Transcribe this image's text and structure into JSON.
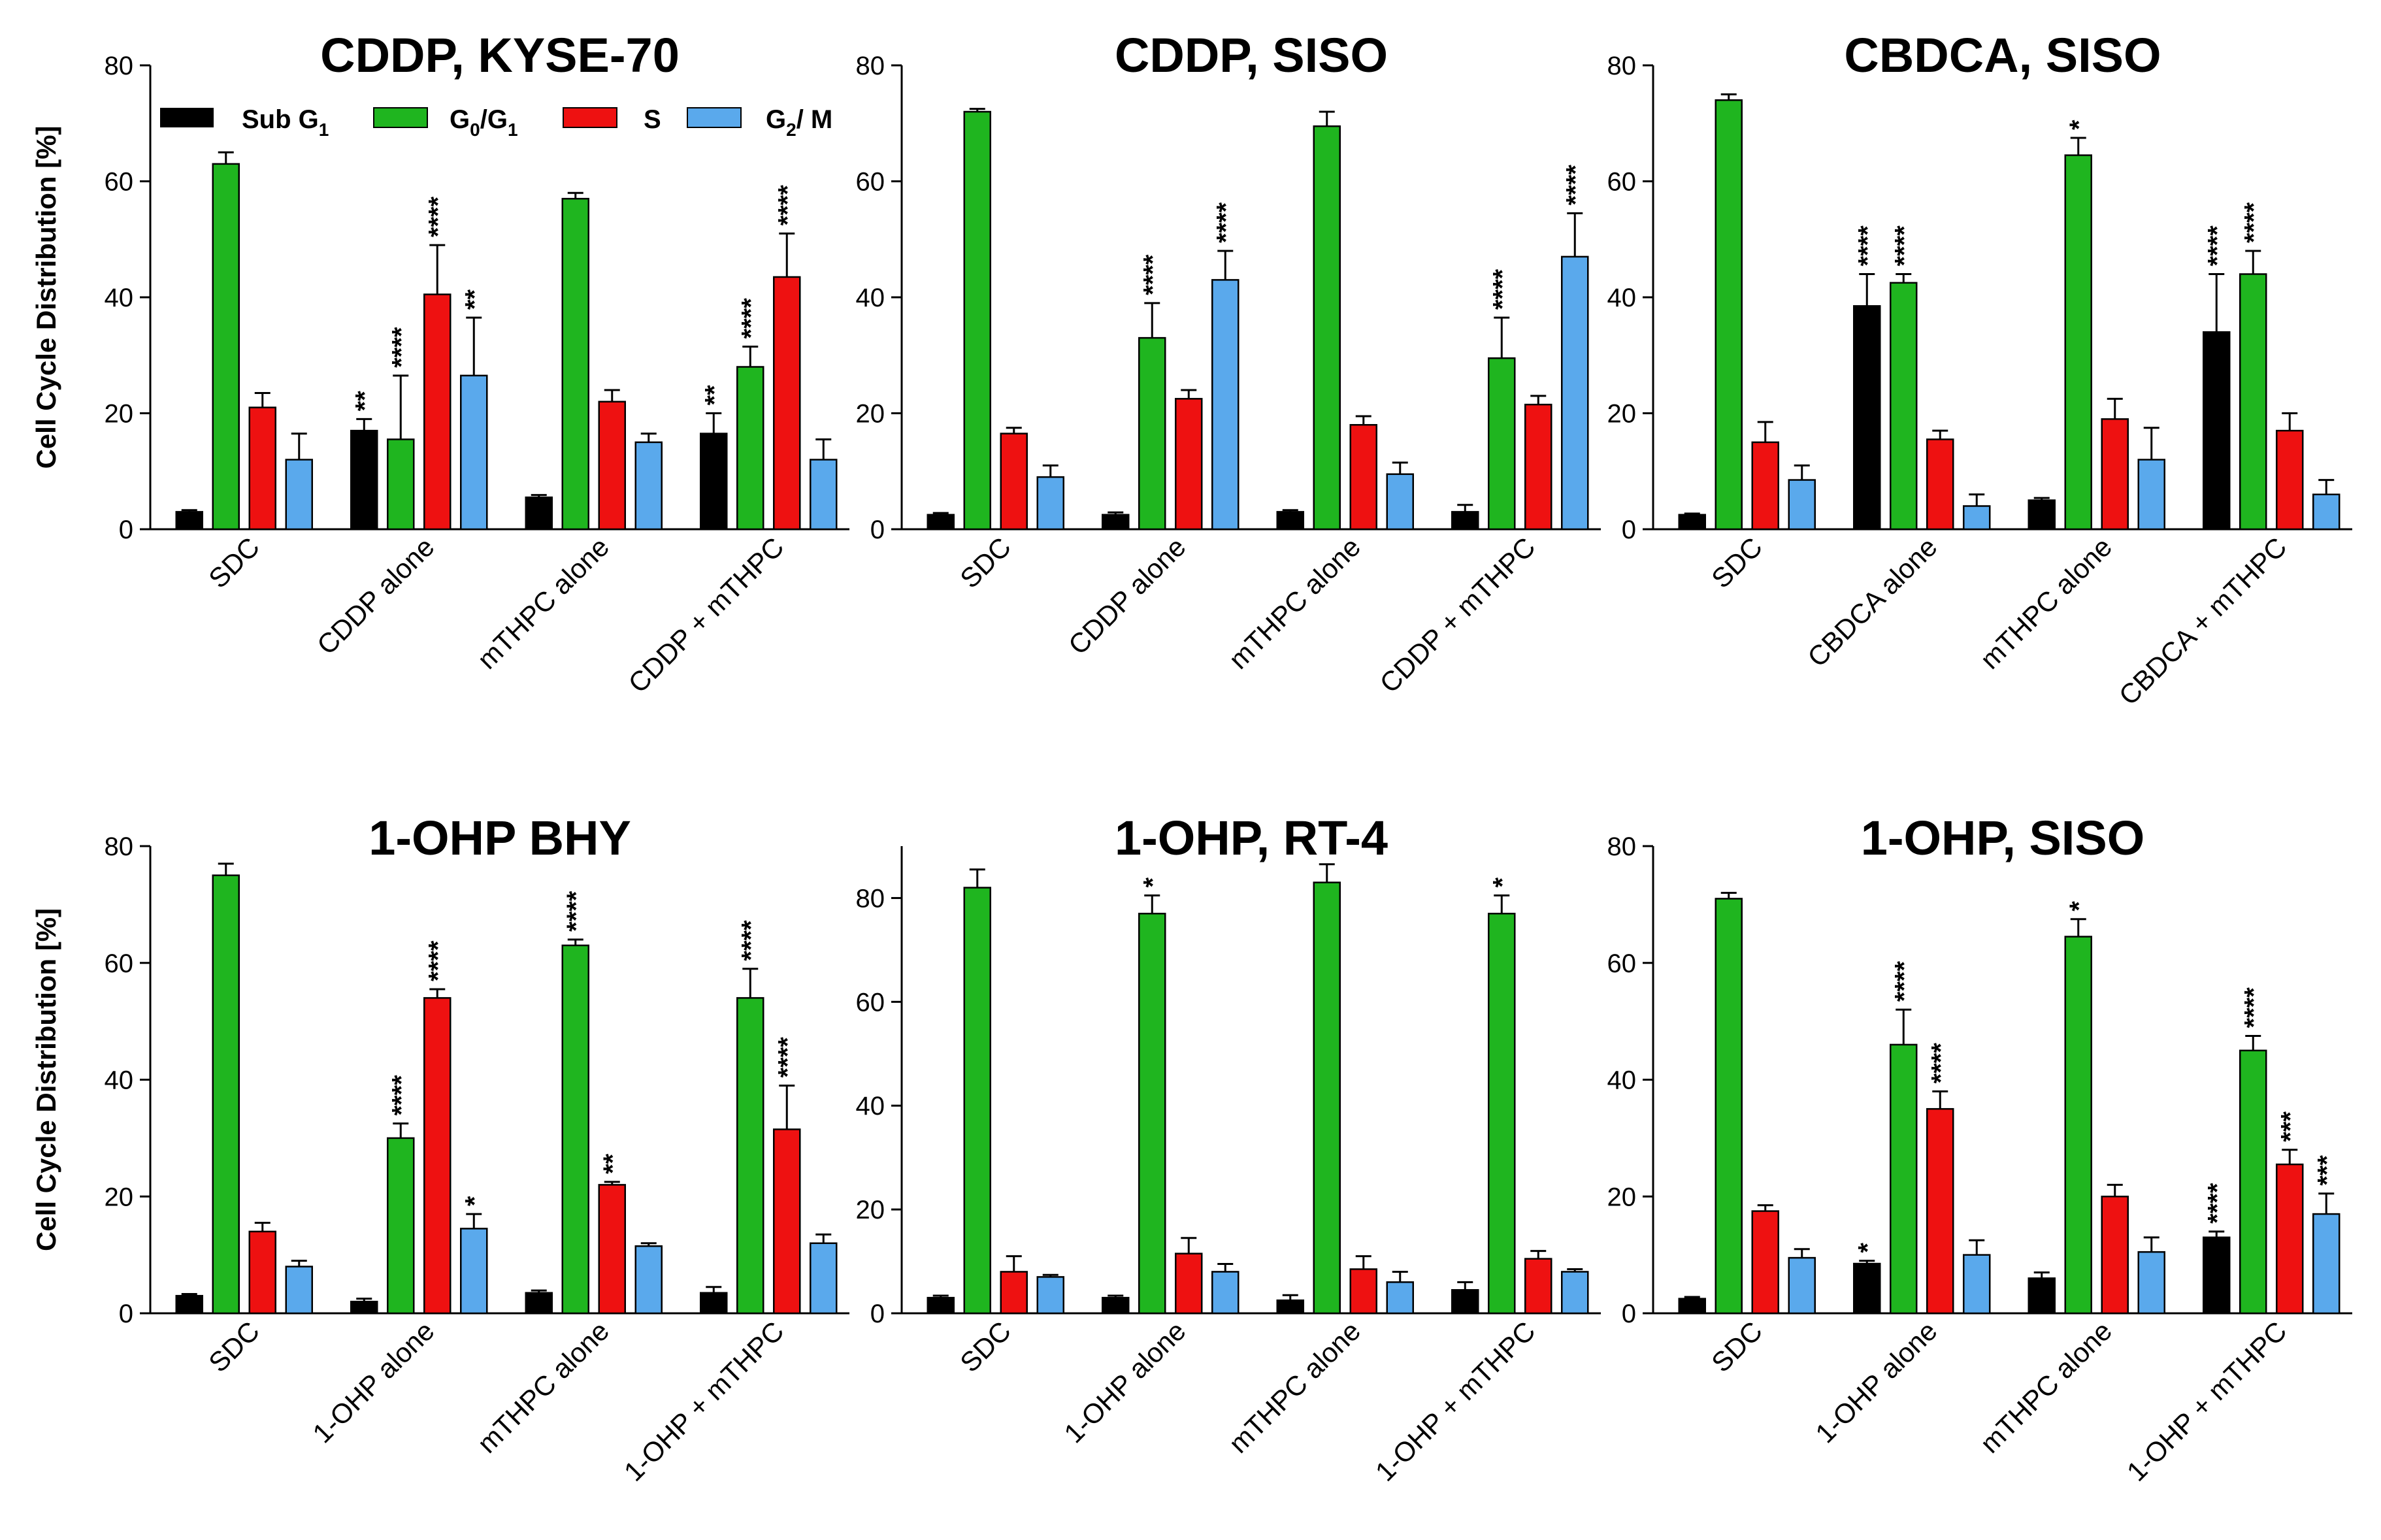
{
  "series_meta": [
    {
      "name": "Sub G1",
      "main": "Sub G",
      "sub": "1",
      "color": "#000000"
    },
    {
      "name": "G0/G1",
      "color": "#1fb51f"
    },
    {
      "name": "S",
      "main": "S",
      "color": "#ee1111"
    },
    {
      "name": "G2/M",
      "color": "#5aa9ec"
    }
  ],
  "legend": {
    "sub_g1": {
      "main": "Sub G",
      "sub": "1"
    },
    "g0g1": {
      "a": "G",
      "a_sub": "0",
      "sep": "/G",
      "b_sub": "1"
    },
    "s": {
      "main": "S"
    },
    "g2m": {
      "a": "G",
      "a_sub": "2",
      "rest": "/ M"
    }
  },
  "chart_data": [
    {
      "type": "bar",
      "title": "CDDP, KYSE-70",
      "ylabel": "Cell Cycle Distribution [%]",
      "ylim": [
        0,
        80
      ],
      "yticks": [
        0,
        20,
        40,
        60,
        80
      ],
      "categories": [
        "SDC",
        "CDDP alone",
        "mTHPC alone",
        "CDDP + mTHPC"
      ],
      "series": [
        {
          "name": "Sub G1",
          "values": [
            3,
            17,
            5.5,
            16.5
          ],
          "errors": [
            0.3,
            2,
            0.4,
            3.5
          ],
          "sig": [
            "",
            "**",
            "",
            "**"
          ]
        },
        {
          "name": "G0/G1",
          "values": [
            63,
            15.5,
            57,
            28
          ],
          "errors": [
            2,
            11,
            1,
            3.5
          ],
          "sig": [
            "",
            "****",
            "",
            "****"
          ]
        },
        {
          "name": "S",
          "values": [
            21,
            40.5,
            22,
            43.5
          ],
          "errors": [
            2.5,
            8.5,
            2,
            7.5
          ],
          "sig": [
            "",
            "****",
            "",
            "****"
          ]
        },
        {
          "name": "G2/M",
          "values": [
            12,
            26.5,
            15,
            12
          ],
          "errors": [
            4.5,
            10,
            1.5,
            3.5
          ],
          "sig": [
            "",
            "**",
            "",
            ""
          ]
        }
      ]
    },
    {
      "type": "bar",
      "title": "CDDP, SISO",
      "ylabel": "",
      "ylim": [
        0,
        80
      ],
      "yticks": [
        0,
        20,
        40,
        60,
        80
      ],
      "categories": [
        "SDC",
        "CDDP alone",
        "mTHPC alone",
        "CDDP + mTHPC"
      ],
      "series": [
        {
          "name": "Sub G1",
          "values": [
            2.5,
            2.5,
            3,
            3
          ],
          "errors": [
            0.3,
            0.4,
            0.3,
            1.2
          ],
          "sig": [
            "",
            "",
            "",
            ""
          ]
        },
        {
          "name": "G0/G1",
          "values": [
            72,
            33,
            69.5,
            29.5
          ],
          "errors": [
            0.5,
            6,
            2.5,
            7
          ],
          "sig": [
            "",
            "****",
            "",
            "****"
          ]
        },
        {
          "name": "S",
          "values": [
            16.5,
            22.5,
            18,
            21.5
          ],
          "errors": [
            1,
            1.5,
            1.5,
            1.5
          ],
          "sig": [
            "",
            "",
            "",
            ""
          ]
        },
        {
          "name": "G2/M",
          "values": [
            9,
            43,
            9.5,
            47
          ],
          "errors": [
            2,
            5,
            2,
            7.5
          ],
          "sig": [
            "",
            "****",
            "",
            "****"
          ]
        }
      ]
    },
    {
      "type": "bar",
      "title": "CBDCA, SISO",
      "ylabel": "",
      "ylim": [
        0,
        80
      ],
      "yticks": [
        0,
        20,
        40,
        60,
        80
      ],
      "categories": [
        "SDC",
        "CBDCA alone",
        "mTHPC alone",
        "CBDCA + mTHPC"
      ],
      "series": [
        {
          "name": "Sub G1",
          "values": [
            2.5,
            38.5,
            5,
            34
          ],
          "errors": [
            0.2,
            5.5,
            0.4,
            10
          ],
          "sig": [
            "",
            "****",
            "",
            "****"
          ]
        },
        {
          "name": "G0/G1",
          "values": [
            74,
            42.5,
            64.5,
            44
          ],
          "errors": [
            1,
            1.5,
            3,
            4
          ],
          "sig": [
            "",
            "****",
            "*",
            "****"
          ]
        },
        {
          "name": "S",
          "values": [
            15,
            15.5,
            19,
            17
          ],
          "errors": [
            3.5,
            1.5,
            3.5,
            3
          ],
          "sig": [
            "",
            "",
            "",
            ""
          ]
        },
        {
          "name": "G2/M",
          "values": [
            8.5,
            4,
            12,
            6
          ],
          "errors": [
            2.5,
            2,
            5.5,
            2.5
          ],
          "sig": [
            "",
            "",
            "",
            ""
          ]
        }
      ]
    },
    {
      "type": "bar",
      "title": "1-OHP BHY",
      "ylabel": "Cell Cycle Distribution [%]",
      "ylim": [
        0,
        80
      ],
      "yticks": [
        0,
        20,
        40,
        60,
        80
      ],
      "categories": [
        "SDC",
        "1-OHP alone",
        "mTHPC alone",
        "1-OHP + mTHPC"
      ],
      "series": [
        {
          "name": "Sub G1",
          "values": [
            3,
            2,
            3.5,
            3.5
          ],
          "errors": [
            0.3,
            0.5,
            0.4,
            1
          ],
          "sig": [
            "",
            "",
            "",
            ""
          ]
        },
        {
          "name": "G0/G1",
          "values": [
            75,
            30,
            63,
            54
          ],
          "errors": [
            2,
            2.5,
            1,
            5
          ],
          "sig": [
            "",
            "****",
            "****",
            "****"
          ]
        },
        {
          "name": "S",
          "values": [
            14,
            54,
            22,
            31.5
          ],
          "errors": [
            1.5,
            1.5,
            0.5,
            7.5
          ],
          "sig": [
            "",
            "****",
            "**",
            "****"
          ]
        },
        {
          "name": "G2/M",
          "values": [
            8,
            14.5,
            11.5,
            12
          ],
          "errors": [
            1,
            2.5,
            0.5,
            1.5
          ],
          "sig": [
            "",
            "*",
            "",
            ""
          ]
        }
      ]
    },
    {
      "type": "bar",
      "title": "1-OHP, RT-4",
      "ylabel": "",
      "ylim": [
        0,
        90
      ],
      "yticks": [
        0,
        20,
        40,
        60,
        80
      ],
      "categories": [
        "SDC",
        "1-OHP alone",
        "mTHPC alone",
        "1-OHP + mTHPC"
      ],
      "series": [
        {
          "name": "Sub G1",
          "values": [
            3,
            3,
            2.5,
            4.5
          ],
          "errors": [
            0.4,
            0.4,
            1,
            1.5
          ],
          "sig": [
            "",
            "",
            "",
            ""
          ]
        },
        {
          "name": "G0/G1",
          "values": [
            82,
            77,
            83,
            77
          ],
          "errors": [
            3.5,
            3.5,
            3.5,
            3.5
          ],
          "sig": [
            "",
            "*",
            "",
            "*"
          ]
        },
        {
          "name": "S",
          "values": [
            8,
            11.5,
            8.5,
            10.5
          ],
          "errors": [
            3,
            3,
            2.5,
            1.5
          ],
          "sig": [
            "",
            "",
            "",
            ""
          ]
        },
        {
          "name": "G2/M",
          "values": [
            7,
            8,
            6,
            8
          ],
          "errors": [
            0.4,
            1.5,
            2,
            0.5
          ],
          "sig": [
            "",
            "",
            "",
            ""
          ]
        }
      ]
    },
    {
      "type": "bar",
      "title": "1-OHP, SISO",
      "ylabel": "",
      "ylim": [
        0,
        80
      ],
      "yticks": [
        0,
        20,
        40,
        60,
        80
      ],
      "categories": [
        "SDC",
        "1-OHP alone",
        "mTHPC alone",
        "1-OHP + mTHPC"
      ],
      "series": [
        {
          "name": "Sub G1",
          "values": [
            2.5,
            8.5,
            6,
            13
          ],
          "errors": [
            0.3,
            0.5,
            1,
            1
          ],
          "sig": [
            "",
            "*",
            "",
            "****"
          ]
        },
        {
          "name": "G0/G1",
          "values": [
            71,
            46,
            64.5,
            45
          ],
          "errors": [
            1,
            6,
            3,
            2.5
          ],
          "sig": [
            "",
            "****",
            "*",
            "****"
          ]
        },
        {
          "name": "S",
          "values": [
            17.5,
            35,
            20,
            25.5
          ],
          "errors": [
            1,
            3,
            2,
            2.5
          ],
          "sig": [
            "",
            "****",
            "",
            "***"
          ]
        },
        {
          "name": "G2/M",
          "values": [
            9.5,
            10,
            10.5,
            17
          ],
          "errors": [
            1.5,
            2.5,
            2.5,
            3.5
          ],
          "sig": [
            "",
            "",
            "",
            "***"
          ]
        }
      ]
    }
  ]
}
